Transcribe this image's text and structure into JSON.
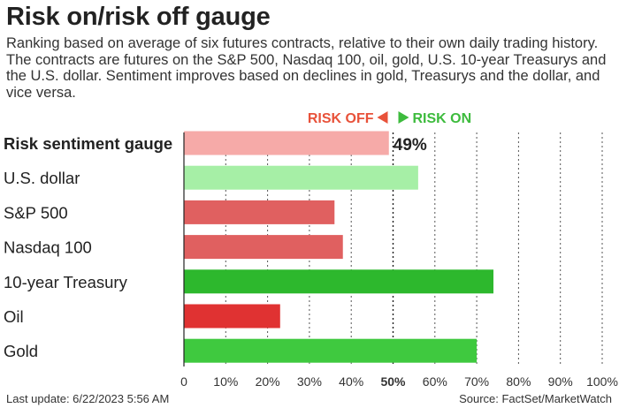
{
  "title": "Risk on/risk off gauge",
  "subtitle": "Ranking based on average of six futures contracts, relative to their own daily trading history. The contracts are futures on the S&P 500, Nasdaq 100, oil, gold, U.S. 10-year Treasurys and the U.S. dollar. Sentiment improves based on declines in gold, Treasurys and the dollar, and vice versa.",
  "legend": {
    "off_label": "RISK OFF",
    "on_label": "RISK ON",
    "off_color": "#e8523a",
    "on_color": "#3dbb3d"
  },
  "footer": {
    "last_update": "Last update: 6/22/2023 5:56 AM",
    "source": "Source: FactSet/MarketWatch"
  },
  "chart_data": {
    "type": "bar",
    "orientation": "horizontal",
    "categories": [
      "Risk sentiment gauge",
      "U.S. dollar",
      "S&P 500",
      "Nasdaq 100",
      "10-year Treasury",
      "Oil",
      "Gold"
    ],
    "values": [
      49,
      56,
      36,
      38,
      74,
      23,
      70
    ],
    "colors": [
      "#f6aaa8",
      "#a6efa6",
      "#e06060",
      "#e06060",
      "#2db82d",
      "#e03232",
      "#3fc93f"
    ],
    "value_labels": [
      "49%",
      "",
      "",
      "",
      "",
      "",
      ""
    ],
    "bold_categories": [
      true,
      false,
      false,
      false,
      false,
      false,
      false
    ],
    "xlim": [
      0,
      100
    ],
    "xticks": [
      "0",
      "10%",
      "20%",
      "30%",
      "40%",
      "50%",
      "60%",
      "70%",
      "80%",
      "90%",
      "100%"
    ],
    "bold_ticks": [
      false,
      false,
      false,
      false,
      false,
      true,
      false,
      false,
      false,
      false,
      false
    ],
    "grid": "vertical dotted",
    "reference_line": 50
  }
}
